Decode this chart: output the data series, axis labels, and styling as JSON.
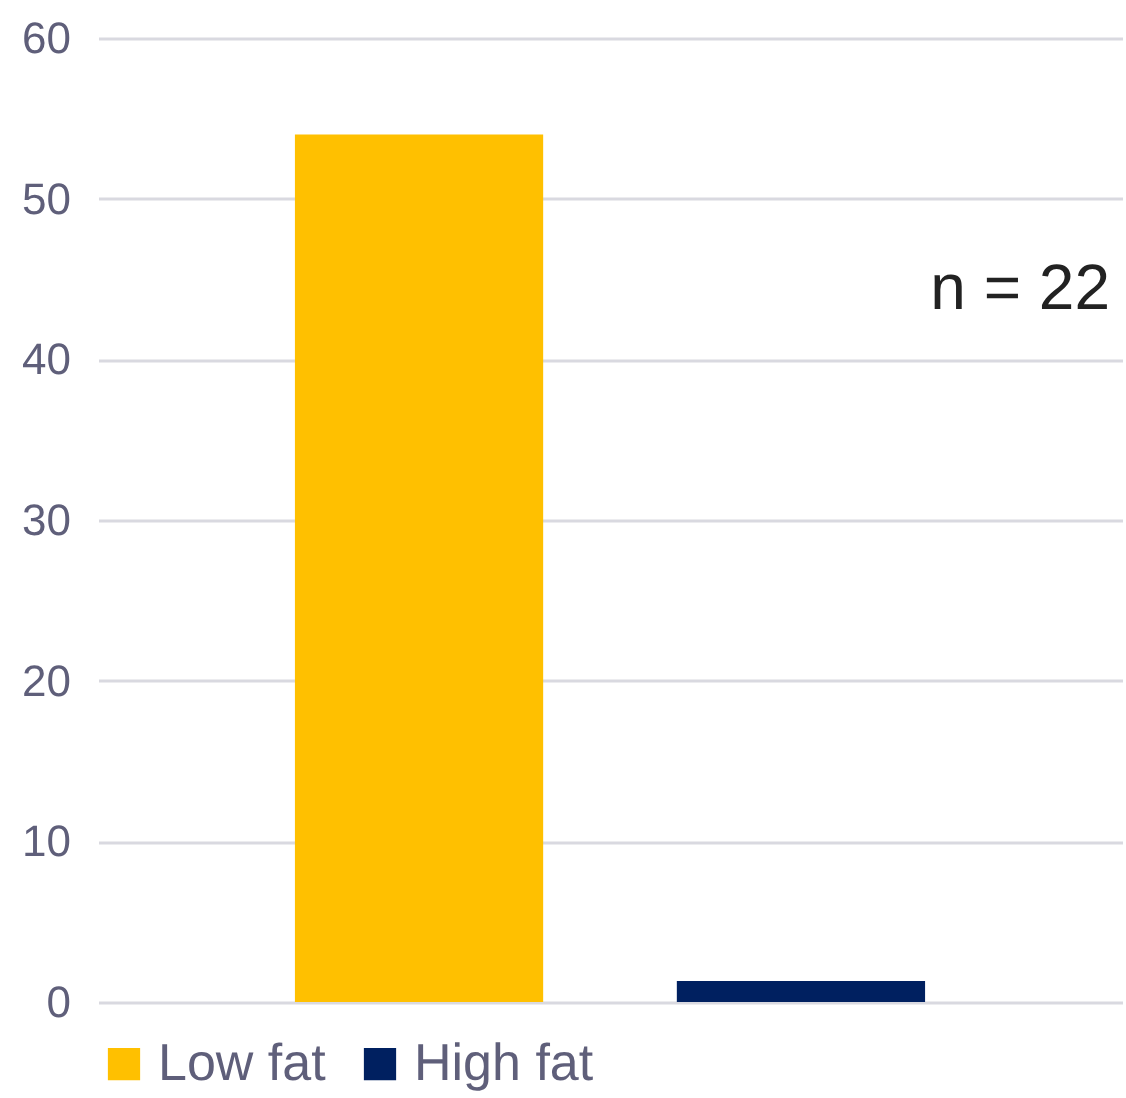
{
  "chart_data": {
    "type": "bar",
    "categories": [
      null
    ],
    "series": [
      {
        "name": "Low fat",
        "color": "#ffc000",
        "values": [
          54
        ]
      },
      {
        "name": "High fat",
        "color": "#002060",
        "values": [
          1.3
        ]
      }
    ],
    "ylim": [
      0,
      60
    ],
    "yticks": [
      0,
      10,
      20,
      30,
      40,
      50,
      60
    ],
    "grid": "y",
    "legend": "bottom",
    "tick_labels": "y",
    "annotations": [
      "n = 22"
    ]
  }
}
